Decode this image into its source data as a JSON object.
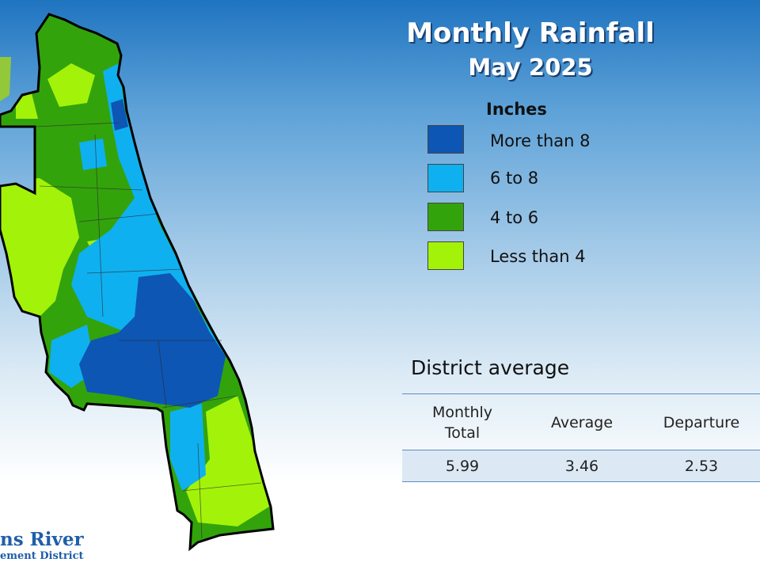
{
  "header": {
    "title": "Monthly Rainfall",
    "subtitle": "May 2025"
  },
  "legend": {
    "title": "Inches",
    "items": [
      {
        "label": "More than 8",
        "color": "#0d56b4"
      },
      {
        "label": "6 to 8",
        "color": "#0fb0f0"
      },
      {
        "label": "4 to 6",
        "color": "#33a30c"
      },
      {
        "label": "Less than 4",
        "color": "#a3f20a"
      }
    ]
  },
  "district_average": {
    "title": "District average",
    "columns": [
      "Monthly\nTotal",
      "Average",
      "Departure"
    ],
    "values": [
      "5.99",
      "3.46",
      "2.53"
    ]
  },
  "logo": {
    "line1": "ns River",
    "line2": "ement District"
  }
}
